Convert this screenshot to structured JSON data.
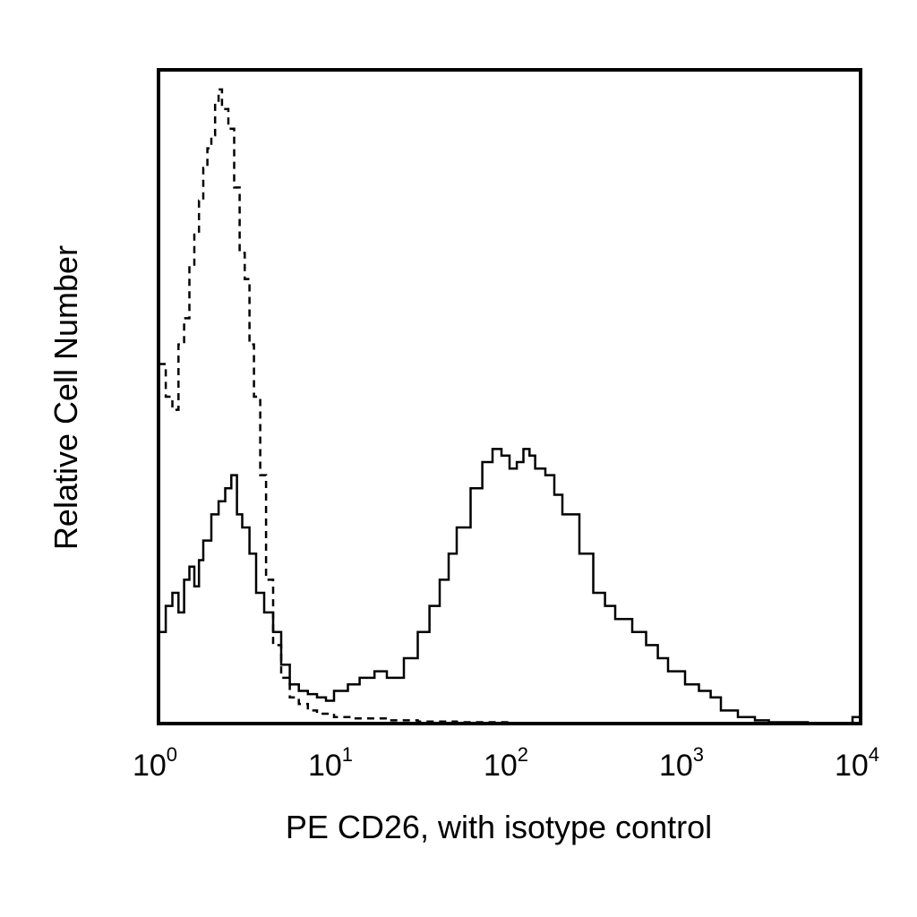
{
  "chart_data": {
    "type": "line",
    "title": "",
    "xlabel": "PE CD26, with isotype control",
    "ylabel": "Relative Cell Number",
    "xscale": "log",
    "xlim": [
      1,
      10000
    ],
    "ylim": [
      0,
      100
    ],
    "grid": false,
    "legend": "none",
    "x_ticks": [
      {
        "base": "10",
        "exp": "0",
        "value": 1
      },
      {
        "base": "10",
        "exp": "1",
        "value": 10
      },
      {
        "base": "10",
        "exp": "2",
        "value": 100
      },
      {
        "base": "10",
        "exp": "3",
        "value": 1000
      },
      {
        "base": "10",
        "exp": "4",
        "value": 10000
      }
    ],
    "series": [
      {
        "style": "dashed",
        "color": "#000000",
        "x": [
          1.0,
          1.1,
          1.2,
          1.3,
          1.4,
          1.5,
          1.6,
          1.7,
          1.8,
          1.9,
          2.0,
          2.1,
          2.2,
          2.3,
          2.5,
          2.7,
          2.9,
          3.1,
          3.3,
          3.5,
          3.8,
          4.1,
          4.5,
          5.0,
          5.6,
          6.3,
          7.1,
          8.0,
          10,
          13,
          20,
          30,
          50,
          100
        ],
        "y": [
          55,
          50,
          48,
          58,
          62,
          70,
          75,
          80,
          85,
          88,
          90,
          95,
          97,
          94,
          91,
          82,
          72,
          68,
          58,
          50,
          38,
          22,
          12,
          7,
          4,
          3,
          2,
          1.5,
          1,
          0.8,
          0.5,
          0.3,
          0.2,
          0
        ]
      },
      {
        "style": "solid",
        "color": "#000000",
        "x": [
          1.0,
          1.1,
          1.2,
          1.3,
          1.4,
          1.5,
          1.6,
          1.7,
          1.8,
          2.0,
          2.2,
          2.4,
          2.6,
          2.8,
          3.0,
          3.3,
          3.6,
          4.0,
          4.5,
          5.0,
          5.6,
          6.3,
          7.1,
          8.0,
          9.0,
          10,
          12,
          14,
          17,
          20,
          25,
          30,
          35,
          40,
          45,
          50,
          60,
          70,
          80,
          90,
          100,
          110,
          120,
          130,
          140,
          160,
          180,
          200,
          250,
          300,
          350,
          400,
          500,
          600,
          700,
          800,
          1000,
          1200,
          1400,
          1600,
          2000,
          2500,
          3000,
          5000,
          9000,
          10000
        ],
        "y": [
          14,
          18,
          20,
          17,
          22,
          24,
          21,
          25,
          28,
          32,
          34,
          36,
          38,
          32,
          30,
          26,
          20,
          17,
          14,
          9,
          6,
          5,
          4.5,
          4,
          3.5,
          5,
          6,
          7,
          8,
          7,
          10,
          14,
          18,
          22,
          26,
          30,
          36,
          40,
          42,
          41,
          39,
          40,
          42,
          41,
          39,
          38,
          35,
          32,
          26,
          20,
          18,
          16,
          14,
          12,
          10,
          8,
          6,
          5,
          4,
          2,
          1,
          0.5,
          0.2,
          0,
          1,
          0
        ]
      }
    ]
  }
}
